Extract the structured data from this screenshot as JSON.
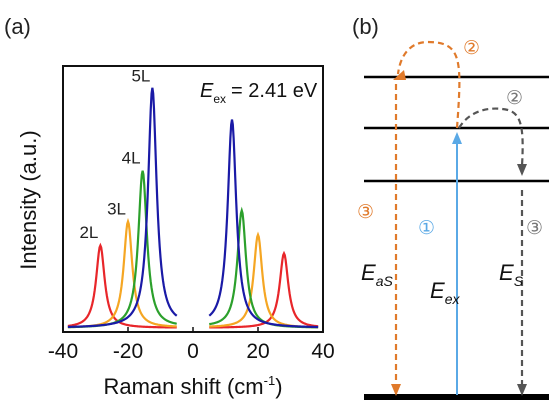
{
  "panel_a": {
    "label": "(a)",
    "annotation": {
      "symbol": "E",
      "subscript": "ex",
      "value": "= 2.41 eV"
    }
  },
  "panel_b": {
    "label": "(b)",
    "steps": {
      "one": "①",
      "two": "②",
      "three": "③"
    },
    "energies": {
      "aS": {
        "symbol": "E",
        "subscript": "aS"
      },
      "ex": {
        "symbol": "E",
        "subscript": "ex"
      },
      "S": {
        "symbol": "E",
        "subscript": "S"
      }
    },
    "colors": {
      "anti_stokes": "#e07a2b",
      "excitation": "#5aa9e6",
      "stokes": "#555555",
      "levels": "#000000"
    }
  },
  "chart_data": {
    "type": "line",
    "xlabel": "Raman shift (cm",
    "xlabel_sup": "-1",
    "xlabel_end": ")",
    "ylabel": "Intensity (a.u.)",
    "xlim": [
      -40,
      40
    ],
    "ylim": [
      0,
      1
    ],
    "xticks": [
      "-40",
      "-20",
      "0",
      "20",
      "40"
    ],
    "grid": false,
    "peak_width": 1.6,
    "series": [
      {
        "name": "2L",
        "color": "#e8262a",
        "peaks": [
          {
            "x": -28.5,
            "y": 0.31
          },
          {
            "x": 28.0,
            "y": 0.28
          }
        ]
      },
      {
        "name": "3L",
        "color": "#f5a623",
        "peaks": [
          {
            "x": -20.0,
            "y": 0.4
          },
          {
            "x": 20.0,
            "y": 0.35
          }
        ]
      },
      {
        "name": "4L",
        "color": "#2ca02c",
        "peaks": [
          {
            "x": -15.5,
            "y": 0.59
          },
          {
            "x": 15.0,
            "y": 0.44
          }
        ]
      },
      {
        "name": "5L",
        "color": "#1a1aa6",
        "peaks": [
          {
            "x": -12.5,
            "y": 0.9
          },
          {
            "x": 12.0,
            "y": 0.78
          }
        ]
      }
    ]
  }
}
